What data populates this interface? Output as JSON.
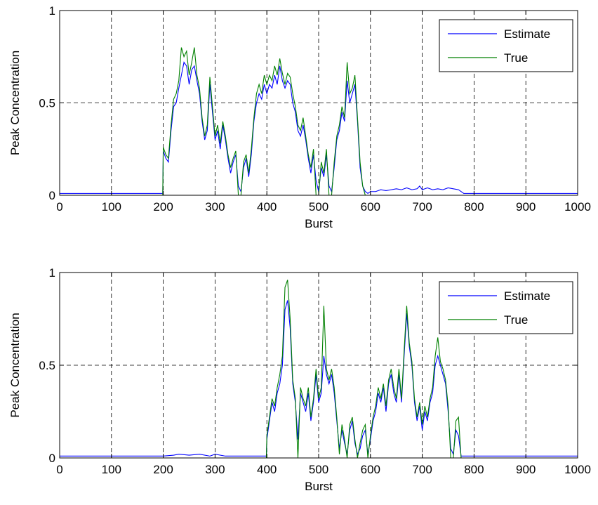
{
  "chart_data": [
    {
      "type": "line",
      "xlabel": "Burst",
      "ylabel": "Peak Concentration",
      "xlim": [
        0,
        1000
      ],
      "ylim": [
        0,
        1
      ],
      "xticks": [
        "0",
        "100",
        "200",
        "300",
        "400",
        "500",
        "600",
        "700",
        "800",
        "900",
        "1000"
      ],
      "yticks": [
        "0",
        "0.5",
        "1"
      ],
      "grid": true,
      "legend_position": "top-right",
      "series": [
        {
          "name": "Estimate",
          "color": "#0000ff",
          "x": [
            0,
            100,
            199,
            200,
            205,
            210,
            215,
            220,
            225,
            230,
            235,
            240,
            245,
            250,
            255,
            260,
            265,
            270,
            275,
            280,
            285,
            290,
            295,
            300,
            305,
            310,
            315,
            320,
            325,
            330,
            335,
            340,
            345,
            350,
            355,
            360,
            365,
            370,
            375,
            380,
            385,
            390,
            395,
            400,
            405,
            410,
            415,
            420,
            425,
            430,
            435,
            440,
            445,
            450,
            455,
            460,
            465,
            470,
            475,
            480,
            485,
            490,
            495,
            500,
            505,
            510,
            515,
            520,
            525,
            530,
            535,
            540,
            545,
            550,
            555,
            560,
            565,
            570,
            575,
            580,
            585,
            590,
            595,
            600,
            610,
            620,
            630,
            640,
            650,
            660,
            670,
            680,
            690,
            695,
            700,
            710,
            720,
            730,
            740,
            750,
            760,
            770,
            780,
            790,
            800,
            900,
            1000
          ],
          "y": [
            0.01,
            0.01,
            0.01,
            0.24,
            0.2,
            0.18,
            0.35,
            0.48,
            0.5,
            0.58,
            0.65,
            0.72,
            0.7,
            0.6,
            0.68,
            0.7,
            0.62,
            0.55,
            0.4,
            0.3,
            0.35,
            0.6,
            0.45,
            0.3,
            0.35,
            0.25,
            0.38,
            0.3,
            0.2,
            0.12,
            0.18,
            0.22,
            0.05,
            0.02,
            0.15,
            0.2,
            0.1,
            0.22,
            0.4,
            0.5,
            0.55,
            0.52,
            0.6,
            0.55,
            0.6,
            0.58,
            0.65,
            0.6,
            0.7,
            0.62,
            0.58,
            0.62,
            0.6,
            0.5,
            0.45,
            0.35,
            0.32,
            0.38,
            0.3,
            0.2,
            0.12,
            0.22,
            0.08,
            0.02,
            0.15,
            0.1,
            0.22,
            0.05,
            0.02,
            0.15,
            0.3,
            0.35,
            0.45,
            0.4,
            0.62,
            0.5,
            0.55,
            0.6,
            0.4,
            0.15,
            0.05,
            0.02,
            0.01,
            0.02,
            0.02,
            0.03,
            0.025,
            0.03,
            0.035,
            0.03,
            0.04,
            0.03,
            0.035,
            0.05,
            0.03,
            0.04,
            0.03,
            0.035,
            0.03,
            0.04,
            0.035,
            0.03,
            0.01,
            0.01,
            0.01,
            0.01,
            0.01
          ]
        },
        {
          "name": "True",
          "color": "#008000",
          "x": [
            0,
            100,
            199,
            200,
            205,
            210,
            215,
            220,
            225,
            230,
            235,
            240,
            245,
            250,
            255,
            260,
            265,
            270,
            275,
            280,
            285,
            290,
            295,
            300,
            305,
            310,
            315,
            320,
            325,
            330,
            335,
            340,
            345,
            350,
            355,
            360,
            365,
            370,
            375,
            380,
            385,
            390,
            395,
            400,
            405,
            410,
            415,
            420,
            425,
            430,
            435,
            440,
            445,
            450,
            455,
            460,
            465,
            470,
            475,
            480,
            485,
            490,
            495,
            500,
            505,
            510,
            515,
            520,
            525,
            530,
            535,
            540,
            545,
            550,
            555,
            560,
            565,
            570,
            575,
            580,
            585,
            590,
            595,
            600,
            700,
            800,
            900,
            1000
          ],
          "y": [
            0,
            0,
            0,
            0.26,
            0.22,
            0.2,
            0.38,
            0.52,
            0.55,
            0.62,
            0.8,
            0.75,
            0.78,
            0.65,
            0.72,
            0.8,
            0.65,
            0.58,
            0.42,
            0.32,
            0.38,
            0.64,
            0.48,
            0.32,
            0.38,
            0.28,
            0.4,
            0.32,
            0.22,
            0.15,
            0.2,
            0.24,
            0.0,
            0.0,
            0.18,
            0.22,
            0.12,
            0.25,
            0.42,
            0.55,
            0.6,
            0.55,
            0.65,
            0.6,
            0.65,
            0.62,
            0.7,
            0.65,
            0.74,
            0.66,
            0.6,
            0.66,
            0.64,
            0.55,
            0.48,
            0.38,
            0.35,
            0.42,
            0.32,
            0.22,
            0.15,
            0.25,
            0.0,
            0.0,
            0.18,
            0.12,
            0.25,
            0.0,
            0.0,
            0.18,
            0.32,
            0.38,
            0.48,
            0.42,
            0.72,
            0.55,
            0.58,
            0.65,
            0.42,
            0.18,
            0.05,
            0.0,
            0.0,
            0.0,
            0.0,
            0.0,
            0.0,
            0.0
          ]
        }
      ]
    },
    {
      "type": "line",
      "xlabel": "Burst",
      "ylabel": "Peak Concentration",
      "xlim": [
        0,
        1000
      ],
      "ylim": [
        0,
        1
      ],
      "xticks": [
        "0",
        "100",
        "200",
        "300",
        "400",
        "500",
        "600",
        "700",
        "800",
        "900",
        "1000"
      ],
      "yticks": [
        "0",
        "0.5",
        "1"
      ],
      "grid": true,
      "legend_position": "top-right",
      "series": [
        {
          "name": "Estimate",
          "color": "#0000ff",
          "x": [
            0,
            100,
            200,
            220,
            230,
            250,
            270,
            290,
            300,
            320,
            399,
            400,
            405,
            410,
            415,
            420,
            425,
            430,
            435,
            440,
            445,
            450,
            455,
            460,
            465,
            470,
            475,
            480,
            485,
            490,
            495,
            500,
            505,
            510,
            515,
            520,
            525,
            530,
            535,
            540,
            545,
            550,
            555,
            560,
            565,
            570,
            575,
            580,
            585,
            590,
            595,
            600,
            605,
            610,
            615,
            620,
            625,
            630,
            635,
            640,
            645,
            650,
            655,
            660,
            665,
            670,
            675,
            680,
            685,
            690,
            695,
            700,
            705,
            710,
            715,
            720,
            725,
            730,
            735,
            740,
            745,
            750,
            755,
            760,
            765,
            770,
            775,
            780,
            785,
            790,
            795,
            800,
            900,
            1000
          ],
          "y": [
            0.01,
            0.01,
            0.01,
            0.015,
            0.02,
            0.015,
            0.02,
            0.01,
            0.02,
            0.01,
            0.01,
            0.1,
            0.2,
            0.3,
            0.25,
            0.35,
            0.4,
            0.5,
            0.8,
            0.85,
            0.7,
            0.4,
            0.3,
            0.1,
            0.35,
            0.3,
            0.25,
            0.35,
            0.2,
            0.3,
            0.45,
            0.3,
            0.35,
            0.55,
            0.45,
            0.4,
            0.45,
            0.35,
            0.2,
            0.05,
            0.15,
            0.08,
            0.02,
            0.15,
            0.2,
            0.08,
            0.02,
            0.05,
            0.12,
            0.15,
            0.02,
            0.1,
            0.2,
            0.25,
            0.35,
            0.3,
            0.38,
            0.25,
            0.4,
            0.45,
            0.35,
            0.3,
            0.45,
            0.3,
            0.55,
            0.78,
            0.6,
            0.5,
            0.3,
            0.2,
            0.28,
            0.15,
            0.25,
            0.2,
            0.3,
            0.35,
            0.5,
            0.55,
            0.5,
            0.45,
            0.4,
            0.25,
            0.05,
            0.02,
            0.15,
            0.12,
            0.01,
            0.01,
            0.01,
            0.01,
            0.01,
            0.01,
            0.01,
            0.01
          ]
        },
        {
          "name": "True",
          "color": "#008000",
          "x": [
            0,
            100,
            200,
            300,
            399,
            400,
            405,
            410,
            415,
            420,
            425,
            430,
            435,
            440,
            445,
            450,
            455,
            460,
            465,
            470,
            475,
            480,
            485,
            490,
            495,
            500,
            505,
            510,
            515,
            520,
            525,
            530,
            535,
            540,
            545,
            550,
            555,
            560,
            565,
            570,
            575,
            580,
            585,
            590,
            595,
            600,
            605,
            610,
            615,
            620,
            625,
            630,
            635,
            640,
            645,
            650,
            655,
            660,
            665,
            670,
            675,
            680,
            685,
            690,
            695,
            700,
            705,
            710,
            715,
            720,
            725,
            730,
            735,
            740,
            745,
            750,
            755,
            760,
            765,
            770,
            775,
            780,
            785,
            790,
            795,
            800,
            900,
            1000
          ],
          "y": [
            0,
            0,
            0,
            0,
            0,
            0.12,
            0.22,
            0.32,
            0.28,
            0.38,
            0.45,
            0.55,
            0.92,
            0.96,
            0.75,
            0.42,
            0.32,
            0.0,
            0.38,
            0.32,
            0.28,
            0.38,
            0.22,
            0.32,
            0.48,
            0.32,
            0.38,
            0.82,
            0.48,
            0.42,
            0.48,
            0.38,
            0.22,
            0.02,
            0.18,
            0.1,
            0.0,
            0.18,
            0.22,
            0.1,
            0.0,
            0.08,
            0.15,
            0.18,
            0.0,
            0.12,
            0.22,
            0.28,
            0.38,
            0.32,
            0.4,
            0.28,
            0.42,
            0.48,
            0.38,
            0.32,
            0.48,
            0.32,
            0.58,
            0.82,
            0.62,
            0.52,
            0.32,
            0.22,
            0.3,
            0.18,
            0.28,
            0.22,
            0.32,
            0.38,
            0.55,
            0.65,
            0.52,
            0.48,
            0.42,
            0.28,
            0.0,
            0.0,
            0.2,
            0.22,
            0.0,
            0.0,
            0.0,
            0.0,
            0.0,
            0.0,
            0.0,
            0.0
          ]
        }
      ]
    }
  ]
}
